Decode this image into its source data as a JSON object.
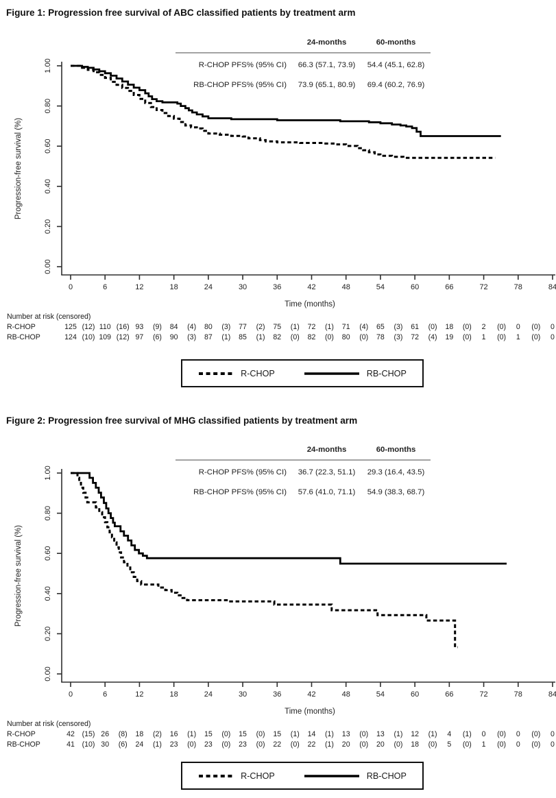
{
  "figures": [
    {
      "title": "Figure 1: Progression free survival of ABC classified patients by treatment arm",
      "inset": {
        "col_headers": [
          "24-months",
          "60-months"
        ],
        "rows": [
          {
            "label": "R-CHOP PFS% (95% CI)",
            "values": [
              "66.3 (57.1, 73.9)",
              "54.4 (45.1, 62.8)"
            ]
          },
          {
            "label": "RB-CHOP PFS% (95% CI)",
            "values": [
              "73.9 (65.1, 80.9)",
              "69.4 (60.2, 76.9)"
            ]
          }
        ]
      },
      "risk_table": {
        "title": "Number at risk (censored)",
        "times": [
          0,
          6,
          12,
          18,
          24,
          30,
          36,
          42,
          48,
          54,
          60,
          66,
          72,
          78,
          84
        ],
        "rows": [
          {
            "label": "R-CHOP",
            "counts": [
              125,
              110,
              93,
              84,
              80,
              77,
              75,
              72,
              71,
              65,
              61,
              18,
              2,
              0,
              0
            ],
            "censored": [
              12,
              16,
              9,
              4,
              3,
              2,
              1,
              1,
              4,
              3,
              0,
              0,
              0,
              0
            ]
          },
          {
            "label": "RB-CHOP",
            "counts": [
              124,
              109,
              97,
              90,
              87,
              85,
              82,
              82,
              80,
              78,
              72,
              19,
              1,
              1,
              0
            ],
            "censored": [
              10,
              12,
              6,
              3,
              1,
              1,
              0,
              0,
              0,
              3,
              4,
              0,
              0,
              0
            ]
          }
        ]
      },
      "legend": [
        {
          "label": "R-CHOP",
          "style": "dashed"
        },
        {
          "label": "RB-CHOP",
          "style": "solid"
        }
      ]
    },
    {
      "title": "Figure 2: Progression free survival of MHG classified patients by treatment arm",
      "inset": {
        "col_headers": [
          "24-months",
          "60-months"
        ],
        "rows": [
          {
            "label": "R-CHOP PFS% (95% CI)",
            "values": [
              "36.7 (22.3, 51.1)",
              "29.3 (16.4, 43.5)"
            ]
          },
          {
            "label": "RB-CHOP PFS% (95% CI)",
            "values": [
              "57.6 (41.0, 71.1)",
              "54.9 (38.3, 68.7)"
            ]
          }
        ]
      },
      "risk_table": {
        "title": "Number at risk (censored)",
        "times": [
          0,
          6,
          12,
          18,
          24,
          30,
          36,
          42,
          48,
          54,
          60,
          66,
          72,
          78,
          84
        ],
        "rows": [
          {
            "label": "R-CHOP",
            "counts": [
              42,
              26,
              18,
              16,
              15,
              15,
              15,
              14,
              13,
              13,
              12,
              4,
              0,
              0,
              0
            ],
            "censored": [
              15,
              8,
              2,
              1,
              0,
              0,
              1,
              1,
              0,
              1,
              1,
              1,
              0,
              0
            ]
          },
          {
            "label": "RB-CHOP",
            "counts": [
              41,
              30,
              24,
              23,
              23,
              23,
              22,
              22,
              20,
              20,
              18,
              5,
              1,
              0,
              0
            ],
            "censored": [
              10,
              6,
              1,
              0,
              0,
              0,
              0,
              1,
              0,
              0,
              0,
              0,
              0,
              0
            ]
          }
        ]
      },
      "legend": [
        {
          "label": "R-CHOP",
          "style": "dashed"
        },
        {
          "label": "RB-CHOP",
          "style": "solid"
        }
      ]
    }
  ],
  "chart_data": [
    {
      "type": "line",
      "subtype": "kaplan-meier-step",
      "title": "Progression free survival of ABC classified patients by treatment arm",
      "xlabel": "Time (months)",
      "ylabel": "Progression-free survival (%)",
      "xlim": [
        0,
        84
      ],
      "ylim": [
        0,
        1
      ],
      "xticks": [
        0,
        6,
        12,
        18,
        24,
        30,
        36,
        42,
        48,
        54,
        60,
        66,
        72,
        78,
        84
      ],
      "yticks": [
        0,
        0.2,
        0.4,
        0.6,
        0.8,
        1.0
      ],
      "ytick_labels": [
        "0.00",
        "0.20",
        "0.40",
        "0.60",
        "0.80",
        "1.00"
      ],
      "grid": false,
      "legend_position": "bottom",
      "series": [
        {
          "name": "R-CHOP",
          "style": "dashed",
          "points": [
            [
              0,
              1
            ],
            [
              2,
              0.99
            ],
            [
              3,
              0.98
            ],
            [
              4,
              0.968
            ],
            [
              5,
              0.955
            ],
            [
              6,
              0.94
            ],
            [
              7,
              0.92
            ],
            [
              8,
              0.905
            ],
            [
              9,
              0.89
            ],
            [
              10,
              0.875
            ],
            [
              11,
              0.855
            ],
            [
              12,
              0.835
            ],
            [
              13,
              0.815
            ],
            [
              14,
              0.795
            ],
            [
              15,
              0.78
            ],
            [
              16,
              0.765
            ],
            [
              17,
              0.75
            ],
            [
              18,
              0.737
            ],
            [
              19,
              0.72
            ],
            [
              20,
              0.703
            ],
            [
              21,
              0.694
            ],
            [
              22,
              0.688
            ],
            [
              23,
              0.676
            ],
            [
              24,
              0.663
            ],
            [
              26,
              0.657
            ],
            [
              28,
              0.651
            ],
            [
              30,
              0.648
            ],
            [
              31,
              0.639
            ],
            [
              33,
              0.63
            ],
            [
              34,
              0.624
            ],
            [
              36,
              0.619
            ],
            [
              40,
              0.616
            ],
            [
              44,
              0.613
            ],
            [
              46,
              0.609
            ],
            [
              48,
              0.601
            ],
            [
              50,
              0.59
            ],
            [
              51,
              0.58
            ],
            [
              52,
              0.57
            ],
            [
              53,
              0.559
            ],
            [
              54,
              0.552
            ],
            [
              56,
              0.547
            ],
            [
              58,
              0.542
            ],
            [
              74,
              0.542
            ]
          ]
        },
        {
          "name": "RB-CHOP",
          "style": "solid",
          "points": [
            [
              0,
              1
            ],
            [
              2,
              0.995
            ],
            [
              3,
              0.99
            ],
            [
              4,
              0.982
            ],
            [
              5,
              0.973
            ],
            [
              6,
              0.963
            ],
            [
              7,
              0.951
            ],
            [
              8,
              0.937
            ],
            [
              9,
              0.922
            ],
            [
              10,
              0.906
            ],
            [
              11,
              0.891
            ],
            [
              12,
              0.879
            ],
            [
              13,
              0.863
            ],
            [
              13.6,
              0.848
            ],
            [
              14.2,
              0.834
            ],
            [
              15,
              0.824
            ],
            [
              16,
              0.818
            ],
            [
              18.6,
              0.812
            ],
            [
              19.2,
              0.8
            ],
            [
              20,
              0.789
            ],
            [
              20.6,
              0.778
            ],
            [
              21.2,
              0.768
            ],
            [
              22,
              0.758
            ],
            [
              23,
              0.748
            ],
            [
              24,
              0.739
            ],
            [
              28,
              0.734
            ],
            [
              36,
              0.729
            ],
            [
              47,
              0.724
            ],
            [
              52,
              0.719
            ],
            [
              54,
              0.714
            ],
            [
              56,
              0.708
            ],
            [
              57.5,
              0.703
            ],
            [
              58.5,
              0.698
            ],
            [
              59.5,
              0.69
            ],
            [
              60.3,
              0.672
            ],
            [
              61,
              0.65
            ],
            [
              75,
              0.65
            ]
          ]
        }
      ]
    },
    {
      "type": "line",
      "subtype": "kaplan-meier-step",
      "title": "Progression free survival of MHG classified patients by treatment arm",
      "xlabel": "Time (months)",
      "ylabel": "Progression-free survival (%)",
      "xlim": [
        0,
        84
      ],
      "ylim": [
        0,
        1
      ],
      "xticks": [
        0,
        6,
        12,
        18,
        24,
        30,
        36,
        42,
        48,
        54,
        60,
        66,
        72,
        78,
        84
      ],
      "yticks": [
        0,
        0.2,
        0.4,
        0.6,
        0.8,
        1.0
      ],
      "ytick_labels": [
        "0.00",
        "0.20",
        "0.40",
        "0.60",
        "0.80",
        "1.00"
      ],
      "grid": false,
      "legend_position": "bottom",
      "series": [
        {
          "name": "R-CHOP",
          "style": "dashed",
          "points": [
            [
              0,
              1
            ],
            [
              1.2,
              0.976
            ],
            [
              1.5,
              0.951
            ],
            [
              1.8,
              0.927
            ],
            [
              2.2,
              0.902
            ],
            [
              2.6,
              0.878
            ],
            [
              2.9,
              0.854
            ],
            [
              4.4,
              0.829
            ],
            [
              5,
              0.805
            ],
            [
              5.5,
              0.78
            ],
            [
              6,
              0.755
            ],
            [
              6.4,
              0.73
            ],
            [
              6.8,
              0.705
            ],
            [
              7.2,
              0.68
            ],
            [
              7.6,
              0.655
            ],
            [
              8,
              0.63
            ],
            [
              8.4,
              0.605
            ],
            [
              8.8,
              0.58
            ],
            [
              9.3,
              0.556
            ],
            [
              9.9,
              0.53
            ],
            [
              10.4,
              0.506
            ],
            [
              11,
              0.483
            ],
            [
              11.6,
              0.462
            ],
            [
              12.3,
              0.445
            ],
            [
              15.3,
              0.43
            ],
            [
              16.5,
              0.417
            ],
            [
              17.6,
              0.404
            ],
            [
              18.6,
              0.391
            ],
            [
              19.5,
              0.378
            ],
            [
              20.3,
              0.367
            ],
            [
              27.5,
              0.361
            ],
            [
              35.5,
              0.345
            ],
            [
              45.5,
              0.317
            ],
            [
              53.5,
              0.293
            ],
            [
              62,
              0.266
            ],
            [
              67,
              0.133
            ],
            [
              67.5,
              0.133
            ]
          ]
        },
        {
          "name": "RB-CHOP",
          "style": "solid",
          "points": [
            [
              0,
              1
            ],
            [
              3.3,
              0.976
            ],
            [
              3.9,
              0.951
            ],
            [
              4.4,
              0.927
            ],
            [
              4.9,
              0.902
            ],
            [
              5.3,
              0.878
            ],
            [
              5.8,
              0.851
            ],
            [
              6.2,
              0.824
            ],
            [
              6.6,
              0.8
            ],
            [
              7,
              0.776
            ],
            [
              7.4,
              0.753
            ],
            [
              7.7,
              0.735
            ],
            [
              8.7,
              0.71
            ],
            [
              9.3,
              0.688
            ],
            [
              10,
              0.664
            ],
            [
              10.6,
              0.64
            ],
            [
              11.2,
              0.617
            ],
            [
              11.9,
              0.6
            ],
            [
              12.6,
              0.588
            ],
            [
              13.3,
              0.576
            ],
            [
              47,
              0.549
            ],
            [
              76,
              0.549
            ]
          ]
        }
      ]
    }
  ]
}
